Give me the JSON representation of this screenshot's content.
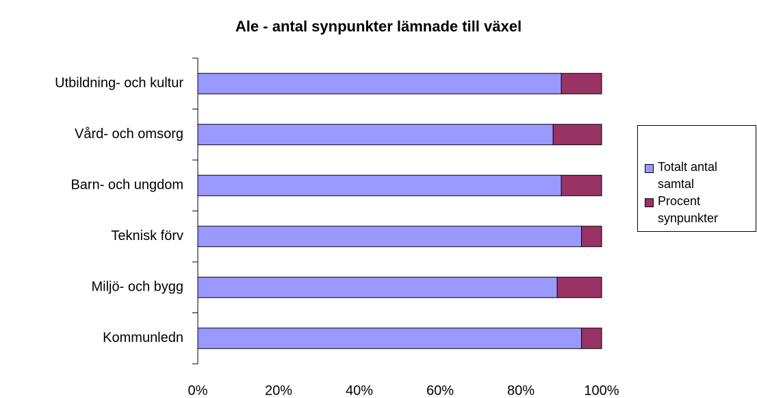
{
  "chart_data": {
    "type": "stacked_barh",
    "title": "Ale - antal synpunkter lämnade till växel",
    "categories": [
      "Utbildning- och kultur",
      "Vård- och omsorg",
      "Barn- och ungdom",
      "Teknisk förv",
      "Miljö- och bygg",
      "Kommunledn"
    ],
    "series": [
      {
        "name": "Totalt antal samtal",
        "color": "#9999ff",
        "values": [
          90,
          88,
          90,
          95,
          89,
          95
        ]
      },
      {
        "name": "Procent synpunkter",
        "color": "#993366",
        "values": [
          10,
          12,
          10,
          5,
          11,
          5
        ]
      }
    ],
    "xlim": [
      0,
      100
    ],
    "xticks": [
      {
        "value": 0,
        "label": "0%"
      },
      {
        "value": 20,
        "label": "20%"
      },
      {
        "value": 40,
        "label": "40%"
      },
      {
        "value": 60,
        "label": "60%"
      },
      {
        "value": 80,
        "label": "80%"
      },
      {
        "value": 100,
        "label": "100%"
      }
    ],
    "legend": "right"
  }
}
